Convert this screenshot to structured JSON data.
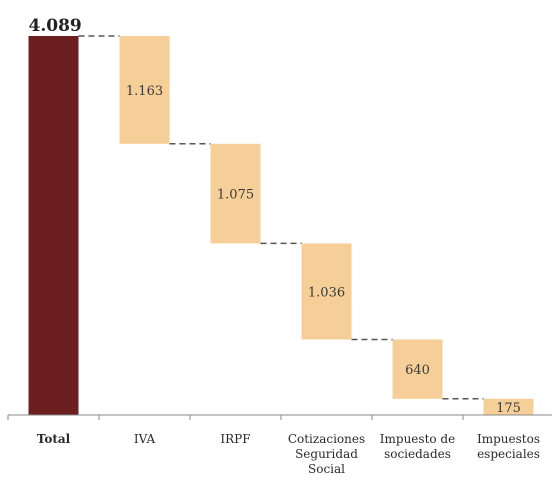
{
  "chart_data": {
    "type": "bar",
    "subtype": "waterfall",
    "title": "",
    "xlabel": "",
    "ylabel": "",
    "categories": [
      [
        "Total"
      ],
      [
        "IVA"
      ],
      [
        "IRPF"
      ],
      [
        "Cotizaciones",
        "Seguridad",
        "Social"
      ],
      [
        "Impuesto de",
        "sociedades"
      ],
      [
        "Impuestos",
        "especiales"
      ]
    ],
    "values": [
      4089,
      1163,
      1075,
      1036,
      640,
      175
    ],
    "value_labels": [
      "4.089",
      "1.163",
      "1.075",
      "1.036",
      "640",
      "175"
    ],
    "ylim": [
      0,
      4089
    ],
    "grid": false,
    "legend": "none",
    "colors": {
      "total": "#6b1f1f",
      "component": "#f6cf98",
      "connector": "#555555",
      "axis": "#888888"
    }
  }
}
